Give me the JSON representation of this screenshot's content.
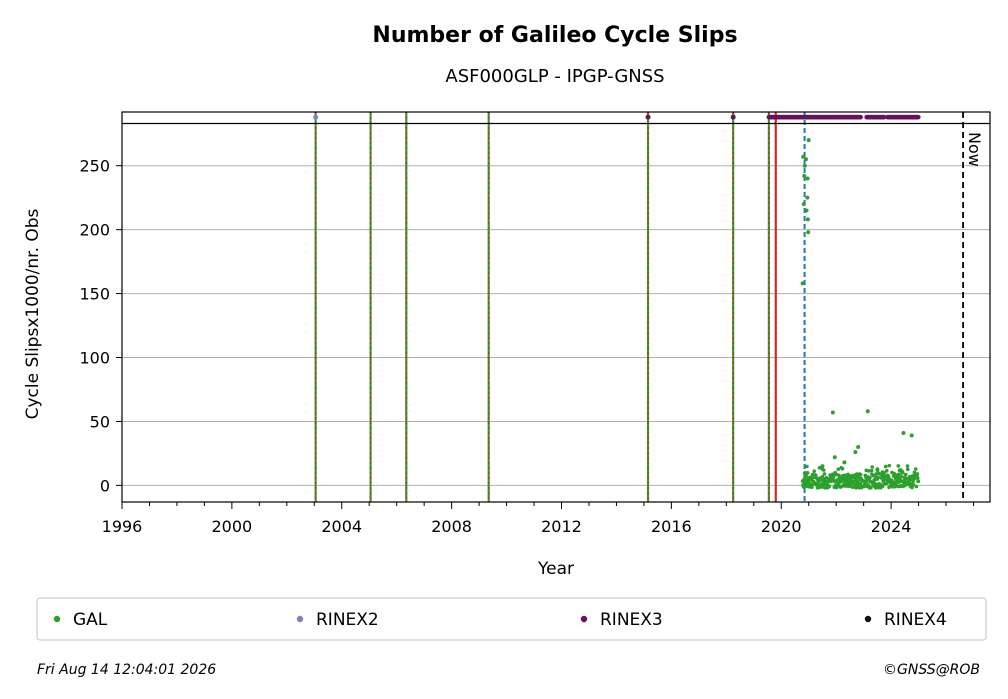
{
  "chart_data": {
    "type": "scatter",
    "title": "Number of Galileo Cycle Slips",
    "subtitle": "ASF000GLP - IPGP-GNSS",
    "xlabel": "Year",
    "ylabel": "Cycle Slipsx1000/nr. Obs",
    "xlim": [
      1996,
      2027.6
    ],
    "ylim": [
      -13,
      292
    ],
    "x_ticks": [
      1996,
      2000,
      2004,
      2008,
      2012,
      2016,
      2020,
      2024
    ],
    "y_ticks": [
      0,
      50,
      100,
      150,
      200,
      250
    ],
    "grid": "horizontal",
    "now_line": {
      "x": 2026.62,
      "label": "Now"
    },
    "clip_line_y": 283,
    "vlines": {
      "green_red": [
        2003.05,
        2005.05,
        2006.35,
        2009.35,
        2015.15,
        2018.25,
        2019.55
      ],
      "red": [
        2019.8
      ],
      "blue_dashed": [
        2020.85
      ]
    },
    "series": [
      {
        "name": "GAL",
        "color": "#2ca02c",
        "spike_points": [
          [
            2020.78,
            158
          ],
          [
            2020.82,
            220
          ],
          [
            2020.84,
            242
          ],
          [
            2020.86,
            250
          ],
          [
            2020.8,
            257
          ],
          [
            2020.9,
            255
          ],
          [
            2020.95,
            225
          ],
          [
            2020.92,
            215
          ],
          [
            2020.97,
            208
          ],
          [
            2020.98,
            198
          ],
          [
            2020.96,
            240
          ],
          [
            2021.0,
            270
          ]
        ],
        "outliers": [
          [
            2021.88,
            57
          ],
          [
            2023.15,
            58
          ],
          [
            2022.8,
            30
          ],
          [
            2024.45,
            41
          ],
          [
            2024.75,
            39
          ],
          [
            2021.5,
            15
          ],
          [
            2022.3,
            18
          ],
          [
            2021.95,
            22
          ],
          [
            2022.7,
            26
          ],
          [
            2023.5,
            12
          ]
        ],
        "dense_range": [
          2020.78,
          2025.0
        ],
        "dense_y_range": [
          -2,
          9
        ]
      },
      {
        "name": "RINEX2",
        "color": "#8080c0",
        "points": [
          [
            2003.05,
            288
          ]
        ]
      },
      {
        "name": "RINEX3",
        "color": "#6b0f5f",
        "points": [
          [
            2015.15,
            288
          ],
          [
            2018.25,
            288
          ]
        ],
        "range": [
          2019.55,
          2025.0
        ],
        "gaps": [
          [
            2022.9,
            2023.1
          ],
          [
            2023.75,
            2023.85
          ]
        ]
      },
      {
        "name": "RINEX4",
        "color": "#1a0a1a",
        "points": []
      }
    ]
  },
  "footer": {
    "timestamp": "Fri Aug 14 12:04:01 2026",
    "copyright": "©GNSS@ROB"
  }
}
